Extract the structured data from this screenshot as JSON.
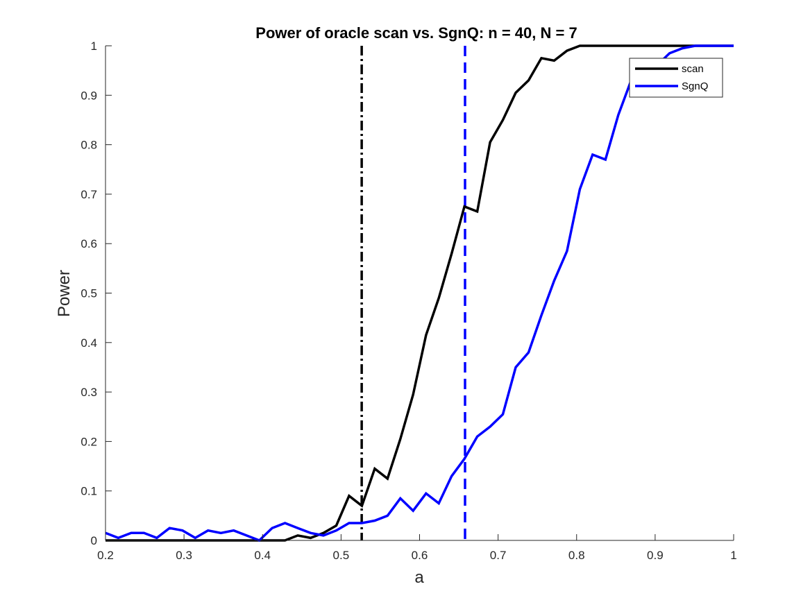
{
  "chart_data": {
    "type": "line",
    "title": "Power of oracle scan vs. SgnQ:  n = 40, N = 7",
    "xlabel": "a",
    "ylabel": "Power",
    "xlim": [
      0.2,
      1
    ],
    "ylim": [
      0,
      1
    ],
    "xticks": [
      "0.2",
      "0.3",
      "0.4",
      "0.5",
      "0.6",
      "0.7",
      "0.8",
      "0.9",
      "1"
    ],
    "yticks": [
      "0",
      "0.1",
      "0.2",
      "0.3",
      "0.4",
      "0.5",
      "0.6",
      "0.7",
      "0.8",
      "0.9",
      "1"
    ],
    "grid": false,
    "legend_position": "top-right",
    "series": [
      {
        "name": "scan",
        "color": "#000000",
        "x": [
          0.2,
          0.2163,
          0.2327,
          0.249,
          0.2653,
          0.2816,
          0.298,
          0.3143,
          0.3306,
          0.3469,
          0.3633,
          0.3796,
          0.3959,
          0.4122,
          0.4286,
          0.4449,
          0.4612,
          0.4776,
          0.4939,
          0.5102,
          0.5265,
          0.5429,
          0.5592,
          0.5755,
          0.5918,
          0.6082,
          0.6245,
          0.6408,
          0.6571,
          0.6735,
          0.6898,
          0.7061,
          0.7224,
          0.7388,
          0.7551,
          0.7714,
          0.7878,
          0.8041,
          0.8204,
          0.8367,
          0.8531,
          0.8694,
          0.8857,
          0.902,
          0.9184,
          0.9347,
          0.951,
          0.9673,
          0.9837,
          1.0
        ],
        "y": [
          0,
          0,
          0,
          0,
          0,
          0,
          0,
          0,
          0,
          0,
          0,
          0,
          0,
          0,
          0,
          0.01,
          0.005,
          0.015,
          0.03,
          0.09,
          0.07,
          0.145,
          0.125,
          0.205,
          0.295,
          0.415,
          0.49,
          0.58,
          0.675,
          0.665,
          0.805,
          0.85,
          0.905,
          0.93,
          0.975,
          0.97,
          0.99,
          1,
          1,
          1,
          1,
          1,
          1,
          1,
          1,
          1,
          1,
          1,
          1,
          1
        ]
      },
      {
        "name": "SgnQ",
        "color": "#0000ff",
        "x": [
          0.2,
          0.2163,
          0.2327,
          0.249,
          0.2653,
          0.2816,
          0.298,
          0.3143,
          0.3306,
          0.3469,
          0.3633,
          0.3796,
          0.3959,
          0.4122,
          0.4286,
          0.4449,
          0.4612,
          0.4776,
          0.4939,
          0.5102,
          0.5265,
          0.5429,
          0.5592,
          0.5755,
          0.5918,
          0.6082,
          0.6245,
          0.6408,
          0.6571,
          0.6735,
          0.6898,
          0.7061,
          0.7224,
          0.7388,
          0.7551,
          0.7714,
          0.7878,
          0.8041,
          0.8204,
          0.8367,
          0.8531,
          0.8694,
          0.8857,
          0.902,
          0.9184,
          0.9347,
          0.951,
          0.9673,
          0.9837,
          1.0
        ],
        "y": [
          0.015,
          0.005,
          0.015,
          0.015,
          0.005,
          0.025,
          0.02,
          0.005,
          0.02,
          0.015,
          0.02,
          0.01,
          0,
          0.025,
          0.035,
          0.025,
          0.015,
          0.01,
          0.02,
          0.035,
          0.035,
          0.04,
          0.05,
          0.085,
          0.06,
          0.095,
          0.075,
          0.13,
          0.165,
          0.21,
          0.23,
          0.255,
          0.35,
          0.38,
          0.455,
          0.525,
          0.585,
          0.71,
          0.78,
          0.77,
          0.86,
          0.93,
          0.955,
          0.96,
          0.985,
          0.995,
          1,
          1,
          1,
          1
        ]
      }
    ],
    "reference_lines": [
      {
        "axis": "x",
        "value": 0.5263,
        "color": "#000000",
        "style": "dash-dot"
      },
      {
        "axis": "x",
        "value": 0.6579,
        "color": "#0000ff",
        "style": "dashed"
      }
    ]
  }
}
